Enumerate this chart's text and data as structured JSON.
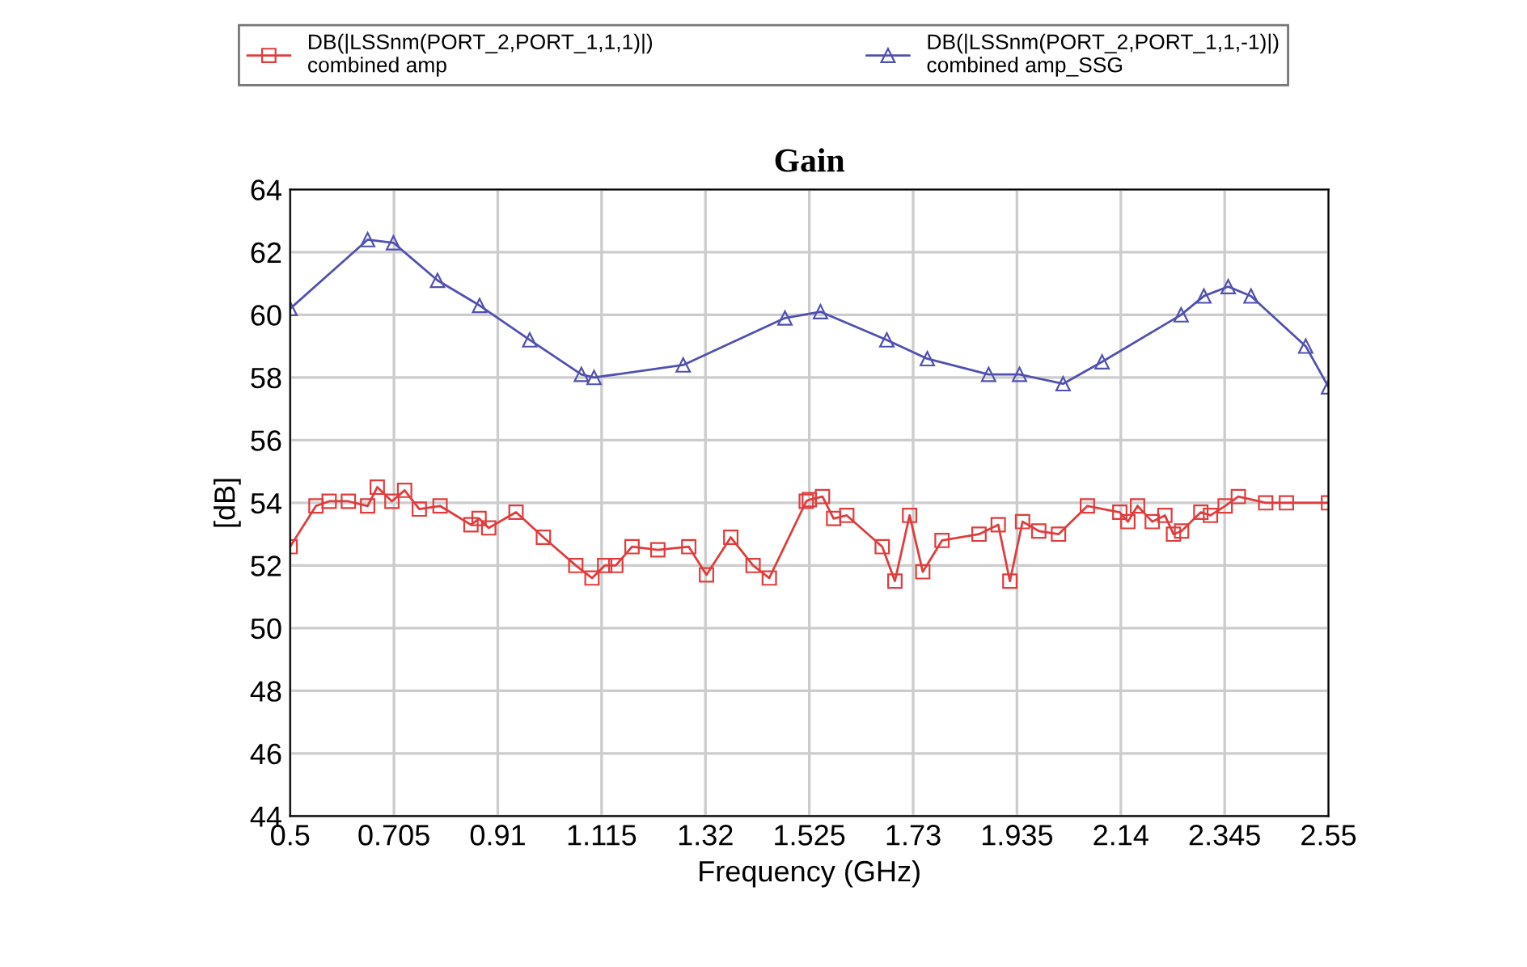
{
  "chart_data": {
    "type": "line",
    "title": "Gain",
    "xlabel": "Frequency (GHz)",
    "ylabel": "[dB]",
    "xlim": [
      0.5,
      2.55
    ],
    "xticks": [
      0.5,
      0.705,
      0.91,
      1.115,
      1.32,
      1.525,
      1.73,
      1.935,
      2.14,
      2.345,
      2.55
    ],
    "ylim": [
      44,
      64
    ],
    "yticks": [
      44,
      46,
      48,
      50,
      52,
      54,
      56,
      58,
      60,
      62,
      64
    ],
    "grid": true,
    "legend": "top",
    "line_style": "solid",
    "series": [
      {
        "name": "DB(|LSSnm(PORT_2,PORT_1,1,1)|)\ncombined amp",
        "color": "#e03c3c",
        "marker": "square",
        "x": [
          0.5,
          0.551,
          0.577,
          0.615,
          0.653,
          0.672,
          0.701,
          0.726,
          0.755,
          0.796,
          0.857,
          0.873,
          0.892,
          0.946,
          1.0,
          1.064,
          1.096,
          1.121,
          1.143,
          1.175,
          1.226,
          1.287,
          1.322,
          1.37,
          1.414,
          1.446,
          1.519,
          1.525,
          1.551,
          1.573,
          1.599,
          1.669,
          1.694,
          1.723,
          1.749,
          1.787,
          1.86,
          1.898,
          1.921,
          1.946,
          1.978,
          2.017,
          2.074,
          2.138,
          2.154,
          2.173,
          2.202,
          2.227,
          2.244,
          2.26,
          2.298,
          2.317,
          2.346,
          2.372,
          2.426,
          2.467,
          2.55
        ],
        "values": [
          52.6,
          53.9,
          54.05,
          54.05,
          53.9,
          54.5,
          54.05,
          54.4,
          53.8,
          53.9,
          53.3,
          53.5,
          53.2,
          53.7,
          52.9,
          52.0,
          51.6,
          52.0,
          52.0,
          52.6,
          52.5,
          52.6,
          51.7,
          52.9,
          52.0,
          51.6,
          54.05,
          54.1,
          54.2,
          53.5,
          53.6,
          52.6,
          51.5,
          53.6,
          51.8,
          52.8,
          53.0,
          53.3,
          51.5,
          53.4,
          53.1,
          53.0,
          53.9,
          53.7,
          53.4,
          53.9,
          53.4,
          53.6,
          53.0,
          53.1,
          53.7,
          53.6,
          53.9,
          54.2,
          54.0,
          54.0,
          54.0
        ]
      },
      {
        "name": "DB(|LSSnm(PORT_2,PORT_1,1,-1)|)\ncombined amp_SSG",
        "color": "#5050b0",
        "marker": "triangle",
        "x": [
          0.5,
          0.653,
          0.704,
          0.791,
          0.874,
          0.973,
          1.075,
          1.1,
          1.276,
          1.477,
          1.547,
          1.678,
          1.758,
          1.879,
          1.94,
          2.026,
          2.103,
          2.259,
          2.304,
          2.352,
          2.397,
          2.505,
          2.55
        ],
        "values": [
          60.2,
          62.4,
          62.3,
          61.1,
          60.3,
          59.2,
          58.1,
          58.0,
          58.4,
          59.9,
          60.1,
          59.2,
          58.6,
          58.1,
          58.1,
          57.8,
          58.5,
          60.0,
          60.6,
          60.9,
          60.6,
          59.0,
          57.7
        ]
      }
    ]
  }
}
